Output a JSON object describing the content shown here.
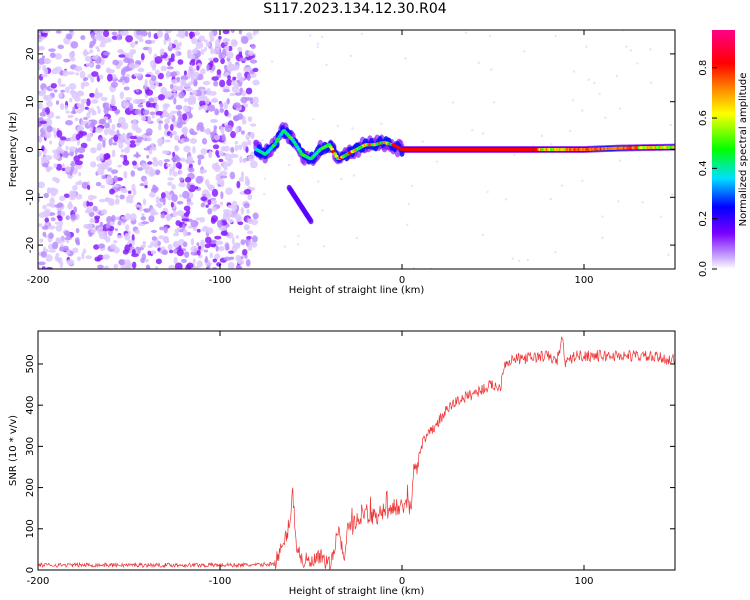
{
  "title": "S117.2023.134.12.30.R04",
  "chart_data": [
    {
      "type": "heatmap",
      "title": "S117.2023.134.12.30.R04",
      "xlabel": "Height of straight line (km)",
      "ylabel": "Frequency (Hz)",
      "xlim": [
        -200,
        150
      ],
      "ylim": [
        -25,
        25
      ],
      "x_ticks": [
        -200,
        -100,
        0,
        100
      ],
      "y_ticks": [
        -20,
        -10,
        0,
        10,
        20
      ],
      "colorbar": {
        "label": "Normalized spectral amplitude",
        "range": [
          0.0,
          0.95
        ],
        "ticks": [
          0.0,
          0.2,
          0.4,
          0.6,
          0.8
        ],
        "colormap": [
          "#ffffff",
          "#c9a8ff",
          "#7a00ff",
          "#0000ff",
          "#00e0ff",
          "#00ff00",
          "#ffff00",
          "#ff8000",
          "#ff0000",
          "#ff0088"
        ]
      },
      "ridge": {
        "description_values": "peak frequency vs height",
        "x": [
          -80,
          -75,
          -70,
          -65,
          -60,
          -55,
          -50,
          -45,
          -40,
          -35,
          -30,
          -25,
          -20,
          -15,
          -10,
          -5,
          0,
          10,
          50,
          80,
          100,
          120,
          150
        ],
        "y": [
          0,
          -1,
          1,
          4,
          2,
          -1,
          -2,
          0,
          1,
          -2,
          -1,
          0,
          1,
          1,
          1.5,
          1,
          0,
          0,
          0,
          0,
          0,
          0.3,
          0.5
        ]
      },
      "noise_region_x": [
        -200,
        -80
      ],
      "noise_region_y": [
        -25,
        25
      ],
      "branch": {
        "x": [
          -62,
          -50
        ],
        "y": [
          -8,
          -15
        ]
      }
    },
    {
      "type": "line",
      "xlabel": "Height of straight line (km)",
      "ylabel": "SNR (10 * v/v)",
      "xlim": [
        -200,
        150
      ],
      "ylim": [
        0,
        580
      ],
      "x_ticks": [
        -200,
        -100,
        0,
        100
      ],
      "y_ticks": [
        0,
        100,
        200,
        300,
        400,
        500
      ],
      "color": "#ee3333",
      "series": [
        {
          "x": [
            -200,
            -150,
            -100,
            -80,
            -70,
            -65,
            -62,
            -60,
            -58,
            -55,
            -50,
            -45,
            -40,
            -38,
            -35,
            -32,
            -30,
            -25,
            -20,
            -15,
            -10,
            -5,
            0,
            5,
            7,
            8,
            10,
            15,
            20,
            25,
            30,
            40,
            50,
            54,
            56,
            60,
            70,
            80,
            85,
            88,
            90,
            95,
            100,
            110,
            120,
            130,
            140,
            150
          ],
          "y": [
            12,
            12,
            12,
            12,
            15,
            60,
            110,
            190,
            60,
            25,
            15,
            30,
            10,
            30,
            100,
            30,
            90,
            120,
            130,
            130,
            140,
            150,
            150,
            150,
            270,
            230,
            300,
            330,
            360,
            390,
            410,
            430,
            450,
            440,
            500,
            510,
            515,
            520,
            505,
            560,
            500,
            520,
            520,
            520,
            520,
            520,
            515,
            510
          ]
        }
      ]
    }
  ]
}
